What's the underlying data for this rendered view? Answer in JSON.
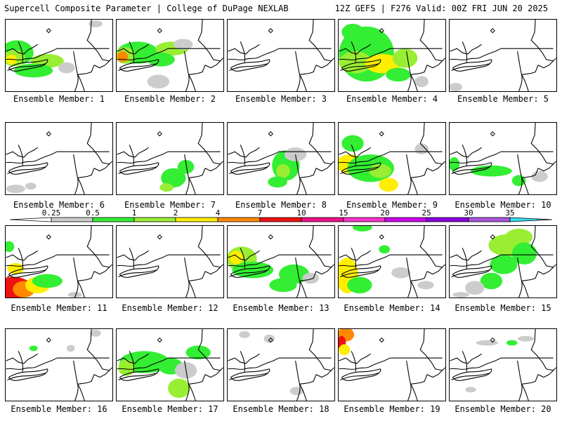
{
  "header": {
    "left": "Supercell Composite Parameter | College of DuPage NEXLAB",
    "right": "12Z GEFS | F276 Valid: 00Z FRI JUN 20 2025"
  },
  "panels": [
    {
      "label": "Ensemble Member: 1"
    },
    {
      "label": "Ensemble Member: 2"
    },
    {
      "label": "Ensemble Member: 3"
    },
    {
      "label": "Ensemble Member: 4"
    },
    {
      "label": "Ensemble Member: 5"
    },
    {
      "label": "Ensemble Member: 6"
    },
    {
      "label": "Ensemble Member: 7"
    },
    {
      "label": "Ensemble Member: 8"
    },
    {
      "label": "Ensemble Member: 9"
    },
    {
      "label": "Ensemble Member: 10"
    },
    {
      "label": "Ensemble Member: 11"
    },
    {
      "label": "Ensemble Member: 12"
    },
    {
      "label": "Ensemble Member: 13"
    },
    {
      "label": "Ensemble Member: 14"
    },
    {
      "label": "Ensemble Member: 15"
    },
    {
      "label": "Ensemble Member: 16"
    },
    {
      "label": "Ensemble Member: 17"
    },
    {
      "label": "Ensemble Member: 18"
    },
    {
      "label": "Ensemble Member: 19"
    },
    {
      "label": "Ensemble Member: 20"
    }
  ],
  "colorbar": {
    "labels": [
      "0.25",
      "0.5",
      "1",
      "2",
      "4",
      "7",
      "10",
      "15",
      "20",
      "25",
      "30",
      "35"
    ],
    "colors": [
      "#ffffff",
      "#cccccc",
      "#33ee33",
      "#99ee33",
      "#ffee00",
      "#ff8800",
      "#ee1111",
      "#ee1188",
      "#ff33cc",
      "#cc00ee",
      "#8800dd",
      "#aa55dd",
      "#33ddee"
    ]
  }
}
